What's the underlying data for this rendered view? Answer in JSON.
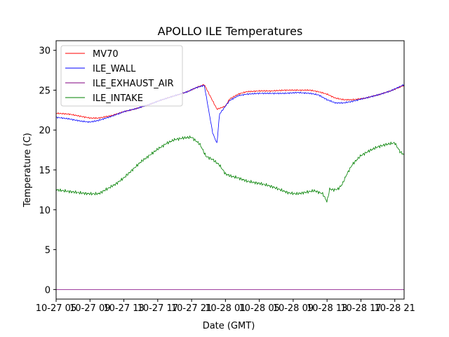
{
  "chart_data": {
    "type": "line",
    "title": "APOLLO ILE Temperatures",
    "xlabel": "Date (GMT)",
    "ylabel": "Temperature (C)",
    "xlim": [
      5.5,
      46.6
    ],
    "ylim": [
      -1.2,
      31.2
    ],
    "grid": false,
    "legend_position": "top-left",
    "x_ticks": [
      {
        "label": "10-27 05",
        "value": 5.5
      },
      {
        "label": "10-27 09",
        "value": 9.5
      },
      {
        "label": "10-27 13",
        "value": 13.5
      },
      {
        "label": "10-27 17",
        "value": 17.5
      },
      {
        "label": "10-27 21",
        "value": 21.5
      },
      {
        "label": "10-28 01",
        "value": 25.5
      },
      {
        "label": "10-28 05",
        "value": 29.5
      },
      {
        "label": "10-28 09",
        "value": 33.5
      },
      {
        "label": "10-28 13",
        "value": 37.5
      },
      {
        "label": "10-28 17",
        "value": 41.5
      },
      {
        "label": "10-28 21",
        "value": 45.5
      }
    ],
    "y_ticks": [
      0,
      5,
      10,
      15,
      20,
      25,
      30
    ],
    "series": [
      {
        "name": "MV70",
        "color": "#ff0000",
        "x": [
          5.5,
          7,
          8.5,
          9.5,
          10.5,
          12,
          13.5,
          15,
          16.5,
          18,
          19.5,
          21,
          22,
          23,
          24.5,
          25.5,
          26,
          27,
          28,
          29.5,
          31,
          32.5,
          34,
          35.5,
          36.5,
          37.5,
          38.5,
          39.5,
          40.5,
          42,
          43.5,
          45,
          46.6
        ],
        "y": [
          22.1,
          22.0,
          21.7,
          21.5,
          21.5,
          21.8,
          22.3,
          22.7,
          23.2,
          23.8,
          24.3,
          24.8,
          25.3,
          25.7,
          22.6,
          23.0,
          23.9,
          24.5,
          24.8,
          24.9,
          24.9,
          25.0,
          25.0,
          25.0,
          24.8,
          24.5,
          24.0,
          23.8,
          23.8,
          24.0,
          24.4,
          24.9,
          25.6
        ]
      },
      {
        "name": "ILE_WALL",
        "color": "#0000ff",
        "x": [
          5.5,
          7,
          8.5,
          9.5,
          10.5,
          12,
          13.5,
          15,
          16.5,
          18,
          19.5,
          21,
          22,
          23,
          24,
          24.5,
          24.8,
          25.5,
          26,
          27,
          28,
          29.5,
          31,
          32.5,
          34,
          35.5,
          36.5,
          37.5,
          38.5,
          39.5,
          40.5,
          42,
          43.5,
          45,
          46.6
        ],
        "y": [
          21.6,
          21.4,
          21.1,
          21.0,
          21.2,
          21.7,
          22.3,
          22.7,
          23.2,
          23.8,
          24.3,
          24.8,
          25.3,
          25.6,
          19.6,
          18.3,
          22.0,
          23.0,
          23.7,
          24.3,
          24.5,
          24.6,
          24.6,
          24.6,
          24.7,
          24.6,
          24.4,
          23.8,
          23.4,
          23.4,
          23.6,
          24.0,
          24.4,
          24.9,
          25.7
        ]
      },
      {
        "name": "ILE_EXHAUST_AIR",
        "color": "#800080",
        "x": [
          5.5,
          46.6
        ],
        "y": [
          0,
          0
        ]
      },
      {
        "name": "ILE_INTAKE",
        "color": "#008000",
        "x": [
          5.5,
          7,
          8.5,
          9.5,
          10.5,
          11.5,
          12.5,
          13.5,
          14.5,
          15.5,
          16.5,
          17.5,
          18.5,
          19.5,
          20.5,
          21.5,
          22.5,
          23.2,
          24,
          24.8,
          25.5,
          26.2,
          27,
          28,
          29,
          30,
          31,
          32,
          33,
          34,
          35,
          36,
          37,
          37.5,
          37.8,
          38.3,
          38.8,
          39.3,
          39.8,
          40.5,
          41.5,
          42.5,
          43.5,
          44.5,
          45.5,
          46.1,
          46.6
        ],
        "y": [
          12.5,
          12.3,
          12.1,
          12.0,
          12.0,
          12.6,
          13.2,
          14.0,
          15.0,
          16.0,
          16.8,
          17.6,
          18.3,
          18.8,
          19.0,
          19.1,
          18.2,
          16.7,
          16.3,
          15.6,
          14.5,
          14.2,
          14.0,
          13.6,
          13.4,
          13.2,
          12.9,
          12.5,
          12.1,
          12.0,
          12.2,
          12.4,
          12.0,
          11.0,
          12.6,
          12.5,
          12.6,
          13.2,
          14.4,
          15.7,
          16.8,
          17.4,
          17.9,
          18.2,
          18.4,
          17.3,
          16.9
        ]
      }
    ]
  }
}
